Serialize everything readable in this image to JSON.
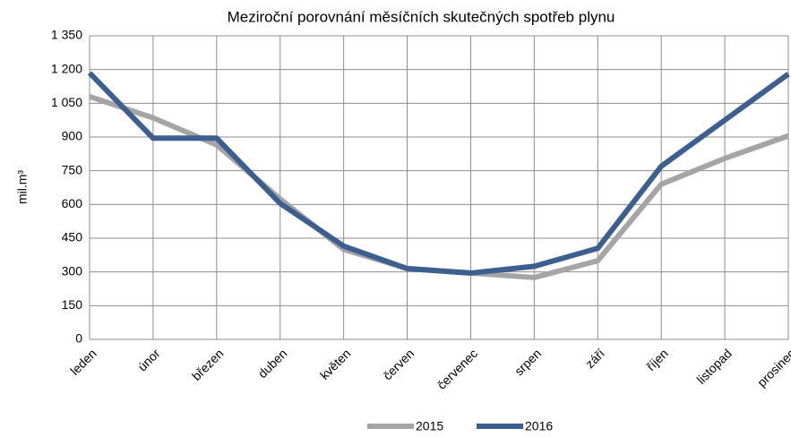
{
  "chart_data": {
    "type": "line",
    "title": "Meziroční porovnání měsíčních skutečných spotřeb plynu",
    "y_label": "mil.m³",
    "categories": [
      "leden",
      "únor",
      "březen",
      "duben",
      "květen",
      "červen",
      "červenec",
      "srpen",
      "září",
      "říjen",
      "listopad",
      "prosinec"
    ],
    "series": [
      {
        "name": "2015",
        "color": "#a5a5a5",
        "values": [
          1080,
          985,
          865,
          625,
          400,
          315,
          295,
          275,
          350,
          690,
          805,
          905
        ]
      },
      {
        "name": "2016",
        "color": "#3d5f8f",
        "values": [
          1185,
          895,
          895,
          605,
          415,
          315,
          295,
          325,
          405,
          770,
          975,
          1180
        ]
      }
    ],
    "ylim": [
      0,
      1350
    ],
    "yticks": [
      0,
      150,
      300,
      450,
      600,
      750,
      900,
      {
        "value": 1050,
        "label": "1 050"
      },
      {
        "value": 1200,
        "label": "1 200"
      },
      {
        "value": 1350,
        "label": "1 350"
      }
    ],
    "grid": true,
    "legend": "bottom"
  }
}
